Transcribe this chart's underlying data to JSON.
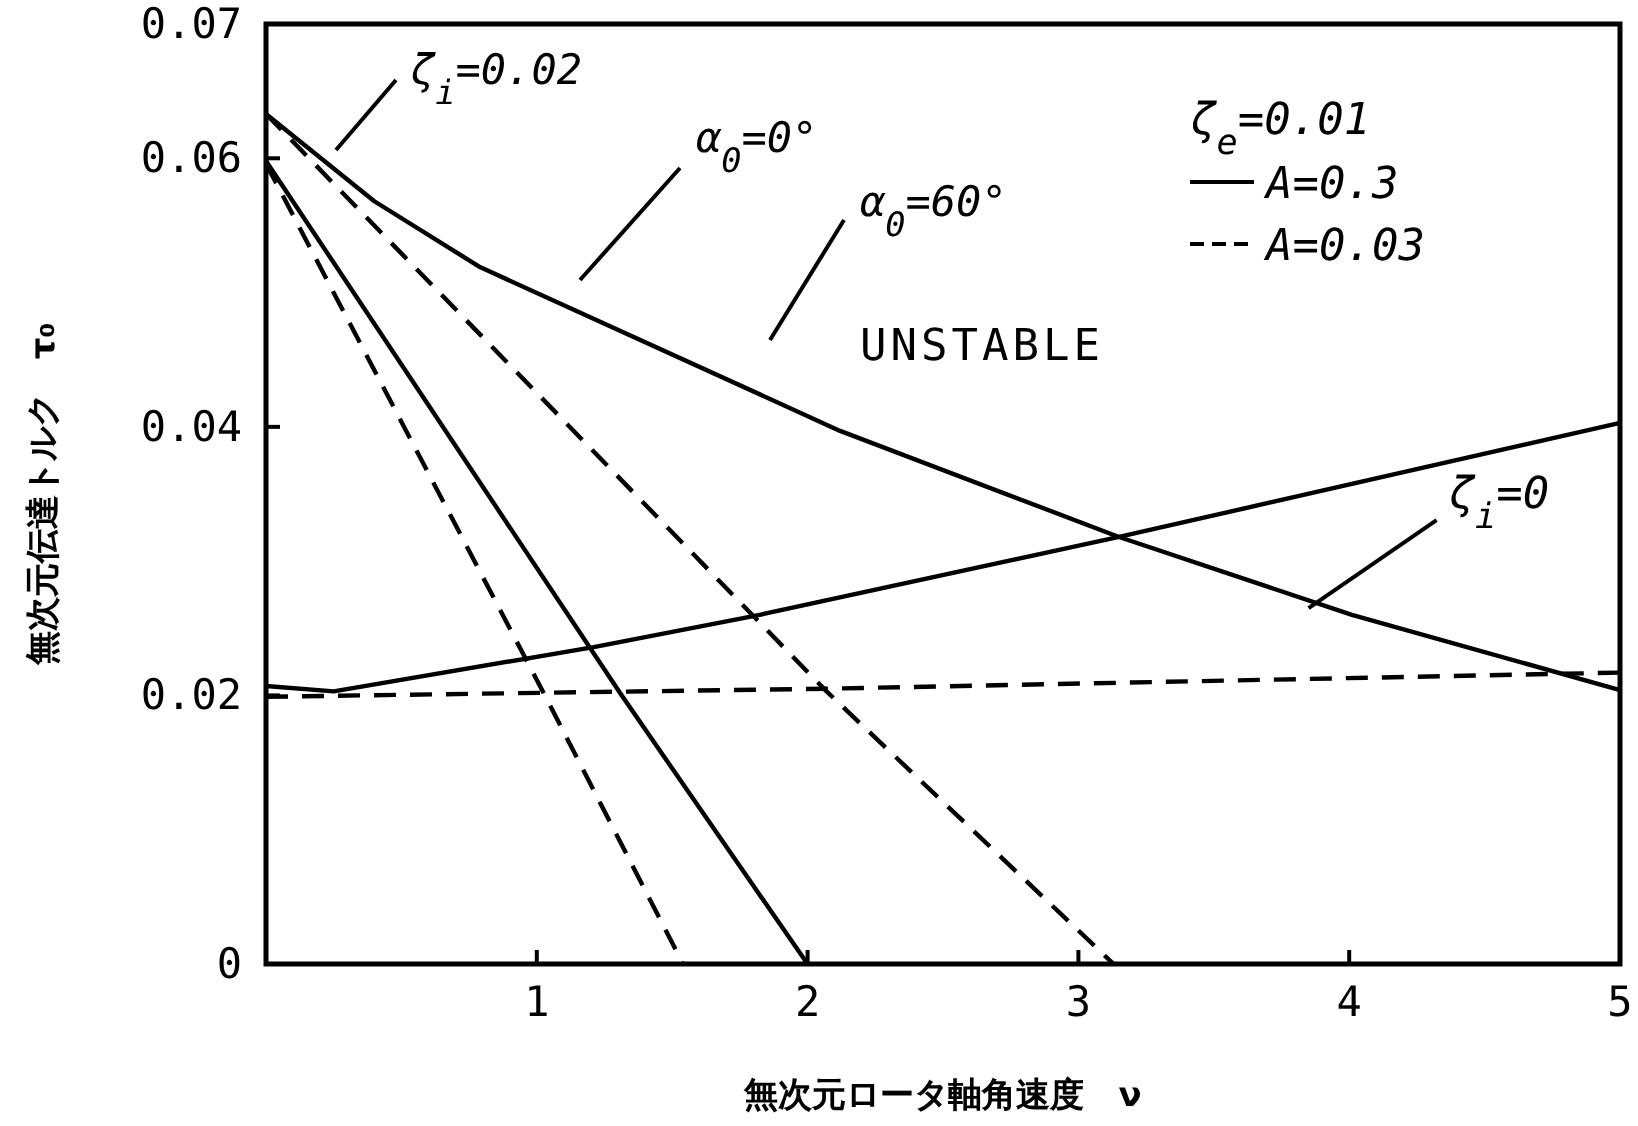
{
  "chart_data": {
    "type": "line",
    "xlabel": "無次元ロータ軸角速度　ν",
    "ylabel": "無次元伝達トルク　τ₀",
    "xlim": [
      0,
      5
    ],
    "ylim": [
      0,
      0.07
    ],
    "xticks": [
      1,
      2,
      3,
      4,
      5
    ],
    "yticks": [
      0,
      0.02,
      0.04,
      0.06,
      0.07
    ],
    "grid": false,
    "legend": "top right",
    "legend_title": "ζ$_{e}$=0.01",
    "marker": "none",
    "series": [
      {
        "name": "A=0.3",
        "color": "#000000",
        "line_style": "solid",
        "x": [
          0,
          1.31,
          2.0
        ],
        "values": [
          0.0598,
          0.0201,
          0
        ]
      },
      {
        "name": "A=0.03",
        "color": "#000000",
        "line_style": "dashed",
        "x": [
          0,
          1.03,
          1.54
        ],
        "values": [
          0.0596,
          0.02,
          0
        ]
      },
      {
        "color": "#000000",
        "line_style": "dashed",
        "x": [
          0,
          2.07,
          3.13
        ],
        "values": [
          0.0633,
          0.0203,
          0
        ]
      },
      {
        "color": "#000000",
        "line_style": "solid",
        "x": [
          0,
          0.4,
          0.79,
          2.12,
          3.15,
          4.01,
          5
        ],
        "values": [
          0.0633,
          0.0568,
          0.0519,
          0.0397,
          0.0318,
          0.026,
          0.0204
        ]
      },
      {
        "color": "#000000",
        "line_style": "solid",
        "x": [
          0,
          0.25,
          1.21,
          1.8,
          3.15,
          5
        ],
        "values": [
          0.0207,
          0.0203,
          0.0236,
          0.0259,
          0.0318,
          0.0403
        ]
      },
      {
        "color": "#000000",
        "line_style": "dashed",
        "x": [
          0,
          2.07,
          5
        ],
        "values": [
          0.0199,
          0.0205,
          0.0217
        ]
      }
    ],
    "annotations": [
      "ζ$_{i}$=0.02",
      "α$_{0}$=0°",
      "α$_{0}$=60°",
      "UNSTABLE",
      {
        "text": "ζ$_{i}$=0",
        "x": 3.85,
        "y": 0.0265
      }
    ]
  }
}
